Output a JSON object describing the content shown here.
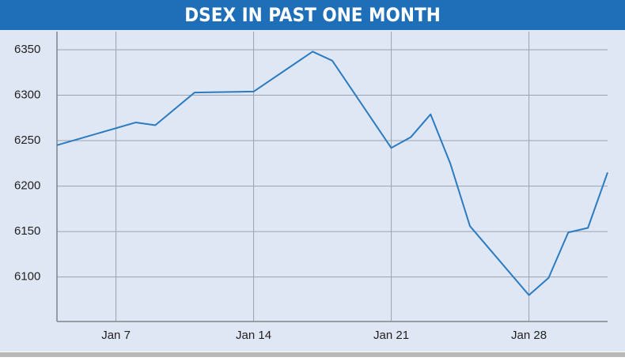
{
  "chart_data": {
    "type": "line",
    "title": "DSEX IN PAST ONE MONTH",
    "x": [
      4,
      8,
      9,
      11,
      14,
      17,
      18,
      21,
      22,
      23,
      24,
      25,
      28,
      29,
      30,
      31,
      32
    ],
    "series": [
      {
        "name": "DSEX",
        "color": "#2b7bc1",
        "values": [
          6245,
          6270,
          6267,
          6303,
          6304,
          6348,
          6338,
          6242,
          6254,
          6279,
          6225,
          6156,
          6080,
          6099,
          6149,
          6154,
          6215
        ]
      }
    ],
    "xlim": [
      4,
      32
    ],
    "xticks": [
      {
        "value": 7,
        "label": "Jan 7"
      },
      {
        "value": 14,
        "label": "Jan 14"
      },
      {
        "value": 21,
        "label": "Jan 21"
      },
      {
        "value": 28,
        "label": "Jan 28"
      }
    ],
    "ylim": [
      6051,
      6370
    ],
    "yticks": [
      6100,
      6150,
      6200,
      6250,
      6300,
      6350
    ],
    "grid": true
  }
}
